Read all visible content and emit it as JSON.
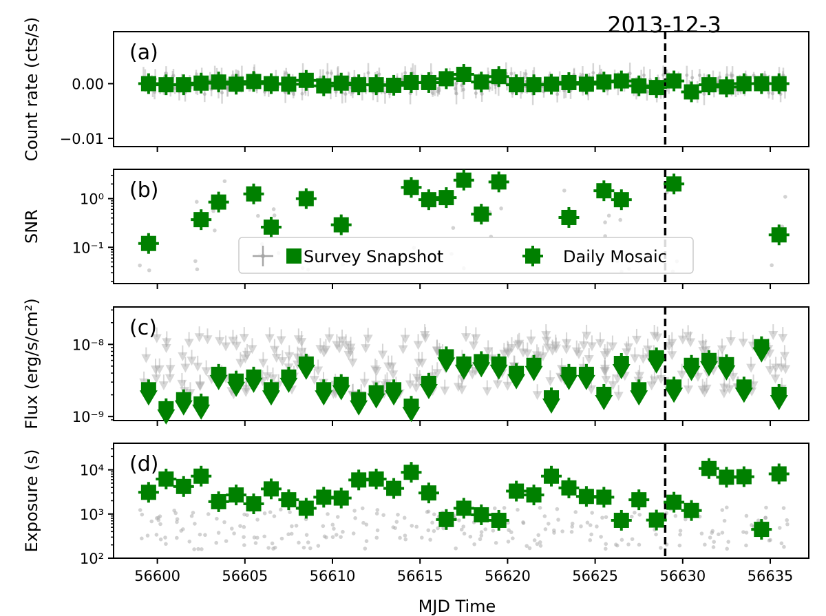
{
  "colors": {
    "daily": "#008000",
    "snapshot": "#a6a6a6",
    "marker_line": "#000000"
  },
  "figure": {
    "xlabel": "MJD Time",
    "xticks": [
      56600,
      56605,
      56610,
      56615,
      56620,
      56625,
      56630,
      56635
    ],
    "xlim": [
      56597.5,
      56637.2
    ],
    "event_mjd": 56629,
    "event_label": "2013-12-3"
  },
  "chart_data": [
    {
      "type": "scatter",
      "panel_label": "(a)",
      "ylabel": "Count rate (cts/s)",
      "yscale": "linear",
      "ylim": [
        -0.0115,
        0.0095
      ],
      "yticks": [
        0,
        -0.01
      ],
      "ytick_labels": [
        "0.00",
        "−0.01"
      ],
      "series": [
        {
          "name": "Daily Mosaic",
          "x": [
            56599.5,
            56600.5,
            56601.5,
            56602.5,
            56603.5,
            56604.5,
            56605.5,
            56606.5,
            56607.5,
            56608.5,
            56609.5,
            56610.5,
            56611.5,
            56612.5,
            56613.5,
            56614.5,
            56615.5,
            56616.5,
            56617.5,
            56618.5,
            56619.5,
            56620.5,
            56621.5,
            56622.5,
            56623.5,
            56624.5,
            56625.5,
            56626.5,
            56627.5,
            56628.5,
            56629.5,
            56630.5,
            56631.5,
            56632.5,
            56633.5,
            56634.5,
            56635.5
          ],
          "y": [
            0.0,
            -0.0002,
            -0.0002,
            0.0001,
            0.0003,
            -0.0001,
            0.0004,
            0.0,
            -0.0001,
            0.0006,
            -0.0004,
            0.0001,
            -0.0002,
            -0.0002,
            -0.0003,
            0.0002,
            0.0002,
            0.0009,
            0.0017,
            0.0003,
            0.0013,
            -0.0002,
            -0.0002,
            -0.0001,
            0.0002,
            -0.0001,
            0.0003,
            0.0005,
            -0.0004,
            -0.0007,
            0.0005,
            -0.0015,
            -0.0002,
            -0.0006,
            0.0,
            0.0,
            0.0
          ]
        }
      ]
    },
    {
      "type": "scatter",
      "panel_label": "(b)",
      "ylabel": "SNR",
      "yscale": "log",
      "ylim": [
        0.018,
        4.0
      ],
      "yticks": [
        1,
        0.1
      ],
      "ytick_labels": [
        "10⁰",
        "10⁻¹"
      ],
      "legend": {
        "placement": "center",
        "entries": [
          "Survey Snapshot",
          "Daily Mosaic"
        ]
      },
      "series": [
        {
          "name": "Daily Mosaic",
          "x": [
            56599.5,
            56602.5,
            56603.5,
            56605.5,
            56606.5,
            56608.5,
            56610.5,
            56614.5,
            56615.5,
            56616.5,
            56617.5,
            56618.5,
            56619.5,
            56623.5,
            56625.5,
            56626.5,
            56629.5,
            56635.5
          ],
          "y": [
            0.12,
            0.37,
            0.85,
            1.25,
            0.26,
            1.0,
            0.29,
            1.7,
            0.95,
            1.05,
            2.4,
            0.48,
            2.2,
            0.41,
            1.45,
            0.95,
            2.0,
            0.18
          ]
        }
      ]
    },
    {
      "type": "scatter",
      "panel_label": "(c)",
      "ylabel": "Flux (erg/s/cm²)",
      "yscale": "log",
      "ylim": [
        8.8e-10,
        3.3e-08
      ],
      "yticks": [
        1e-08,
        1e-09
      ],
      "ytick_labels": [
        "10⁻⁸",
        "10⁻⁹"
      ],
      "series": [
        {
          "name": "Daily Mosaic",
          "x": [
            56599.5,
            56600.5,
            56601.5,
            56602.5,
            56603.5,
            56604.5,
            56605.5,
            56606.5,
            56607.5,
            56608.5,
            56609.5,
            56610.5,
            56611.5,
            56612.5,
            56613.5,
            56614.5,
            56615.5,
            56616.5,
            56617.5,
            56618.5,
            56619.5,
            56620.5,
            56621.5,
            56622.5,
            56623.5,
            56624.5,
            56625.5,
            56626.5,
            56627.5,
            56628.5,
            56629.5,
            56630.5,
            56631.5,
            56632.5,
            56633.5,
            56634.5,
            56635.5
          ],
          "y": [
            2.2e-09,
            1.2e-09,
            1.6e-09,
            1.4e-09,
            3.6e-09,
            2.9e-09,
            3.3e-09,
            2.2e-09,
            3.3e-09,
            5e-09,
            2.2e-09,
            2.6e-09,
            1.6e-09,
            2e-09,
            2.2e-09,
            1.3e-09,
            2.7e-09,
            6.3e-09,
            5e-09,
            5.4e-09,
            5e-09,
            3.7e-09,
            4.8e-09,
            1.7e-09,
            3.6e-09,
            3.6e-09,
            1.9e-09,
            5.1e-09,
            2.2e-09,
            6.1e-09,
            2.4e-09,
            4.8e-09,
            5.6e-09,
            4.9e-09,
            2.4e-09,
            8.7e-09,
            1.9e-09
          ]
        }
      ]
    },
    {
      "type": "scatter",
      "panel_label": "(d)",
      "ylabel": "Exposure (s)",
      "yscale": "log",
      "ylim": [
        100,
        40000
      ],
      "yticks": [
        10000,
        1000,
        100
      ],
      "ytick_labels": [
        "10⁴",
        "10³",
        "10²"
      ],
      "series": [
        {
          "name": "Daily Mosaic",
          "x": [
            56599.5,
            56600.5,
            56601.5,
            56602.5,
            56603.5,
            56604.5,
            56605.5,
            56606.5,
            56607.5,
            56608.5,
            56609.5,
            56610.5,
            56611.5,
            56612.5,
            56613.5,
            56614.5,
            56615.5,
            56616.5,
            56617.5,
            56618.5,
            56619.5,
            56620.5,
            56621.5,
            56622.5,
            56623.5,
            56624.5,
            56625.5,
            56626.5,
            56627.5,
            56628.5,
            56629.5,
            56630.5,
            56631.5,
            56632.5,
            56633.5,
            56634.5,
            56635.5
          ],
          "y": [
            3100,
            6200,
            4200,
            7200,
            1900,
            2700,
            1700,
            3700,
            2100,
            1350,
            2400,
            2300,
            5900,
            6200,
            3800,
            8800,
            3000,
            750,
            1350,
            960,
            720,
            3300,
            2700,
            7200,
            3900,
            2500,
            2400,
            720,
            2100,
            730,
            1850,
            1200,
            10700,
            6800,
            7000,
            450,
            8100
          ]
        }
      ]
    }
  ]
}
